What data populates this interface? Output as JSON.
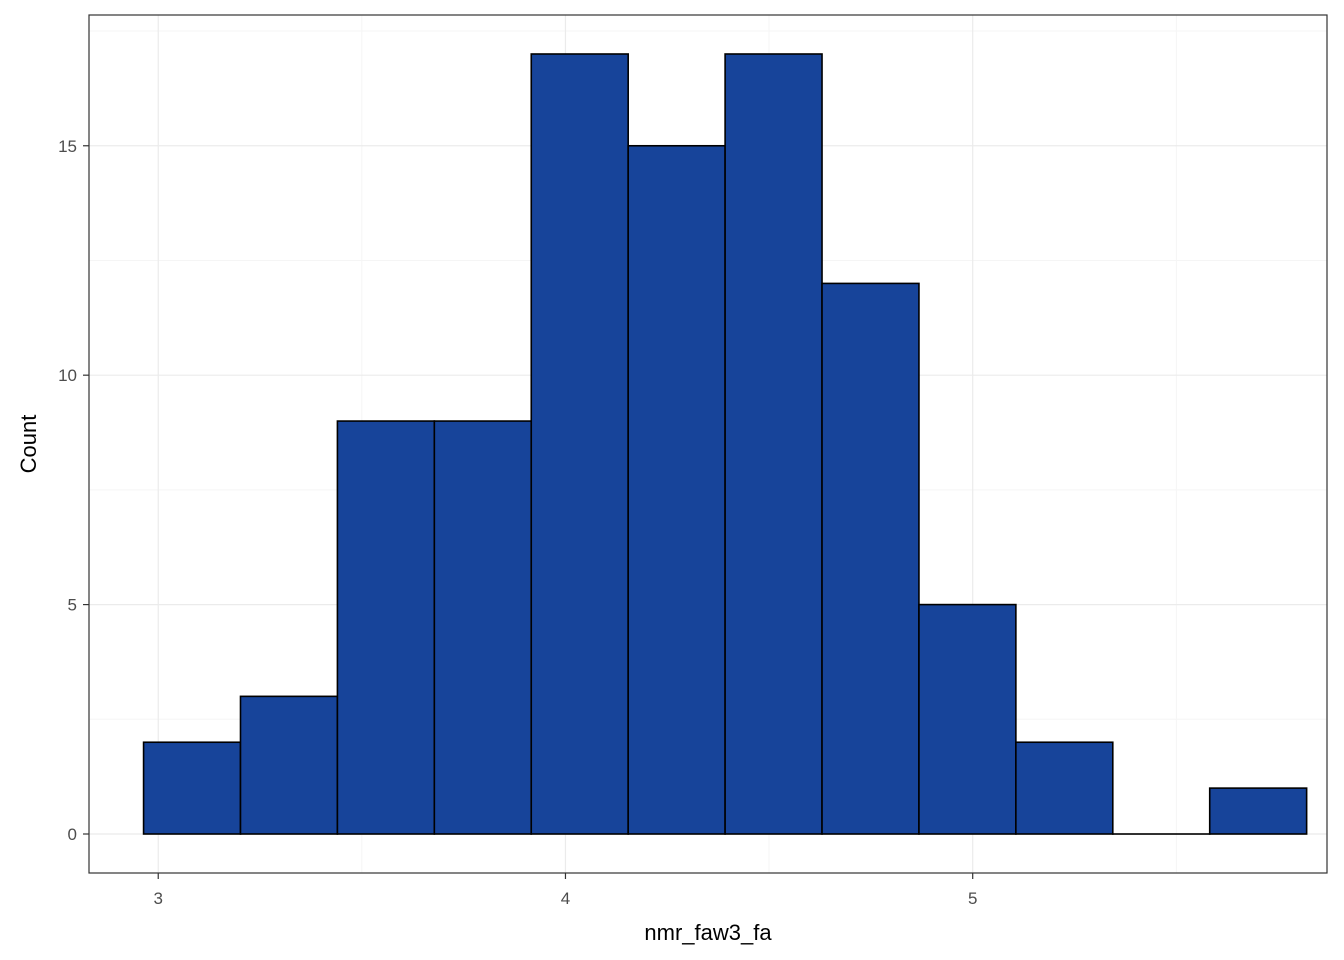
{
  "chart_data": {
    "type": "bar",
    "subtype": "histogram",
    "title": "",
    "xlabel": "nmr_faw3_fa",
    "ylabel": "Count",
    "xlim": [
      2.83,
      5.87
    ],
    "ylim": [
      -0.85,
      17.85
    ],
    "x_ticks": [
      3,
      4,
      5
    ],
    "y_ticks": [
      0,
      5,
      10,
      15
    ],
    "bin_edges": [
      2.964,
      3.202,
      3.44,
      3.678,
      3.916,
      4.154,
      4.392,
      4.63,
      4.868,
      5.106,
      5.344,
      5.582,
      5.82
    ],
    "values": [
      2,
      3,
      9,
      9,
      17,
      15,
      17,
      12,
      5,
      2,
      0,
      1
    ],
    "grid": true,
    "legend": "none",
    "colors": {
      "bar_fill": "#17449a",
      "bar_outline": "#000000",
      "grid_major": "#ebebeb",
      "grid_minor": "#f5f5f5",
      "panel_border": "#333333",
      "background": "#ffffff"
    }
  }
}
